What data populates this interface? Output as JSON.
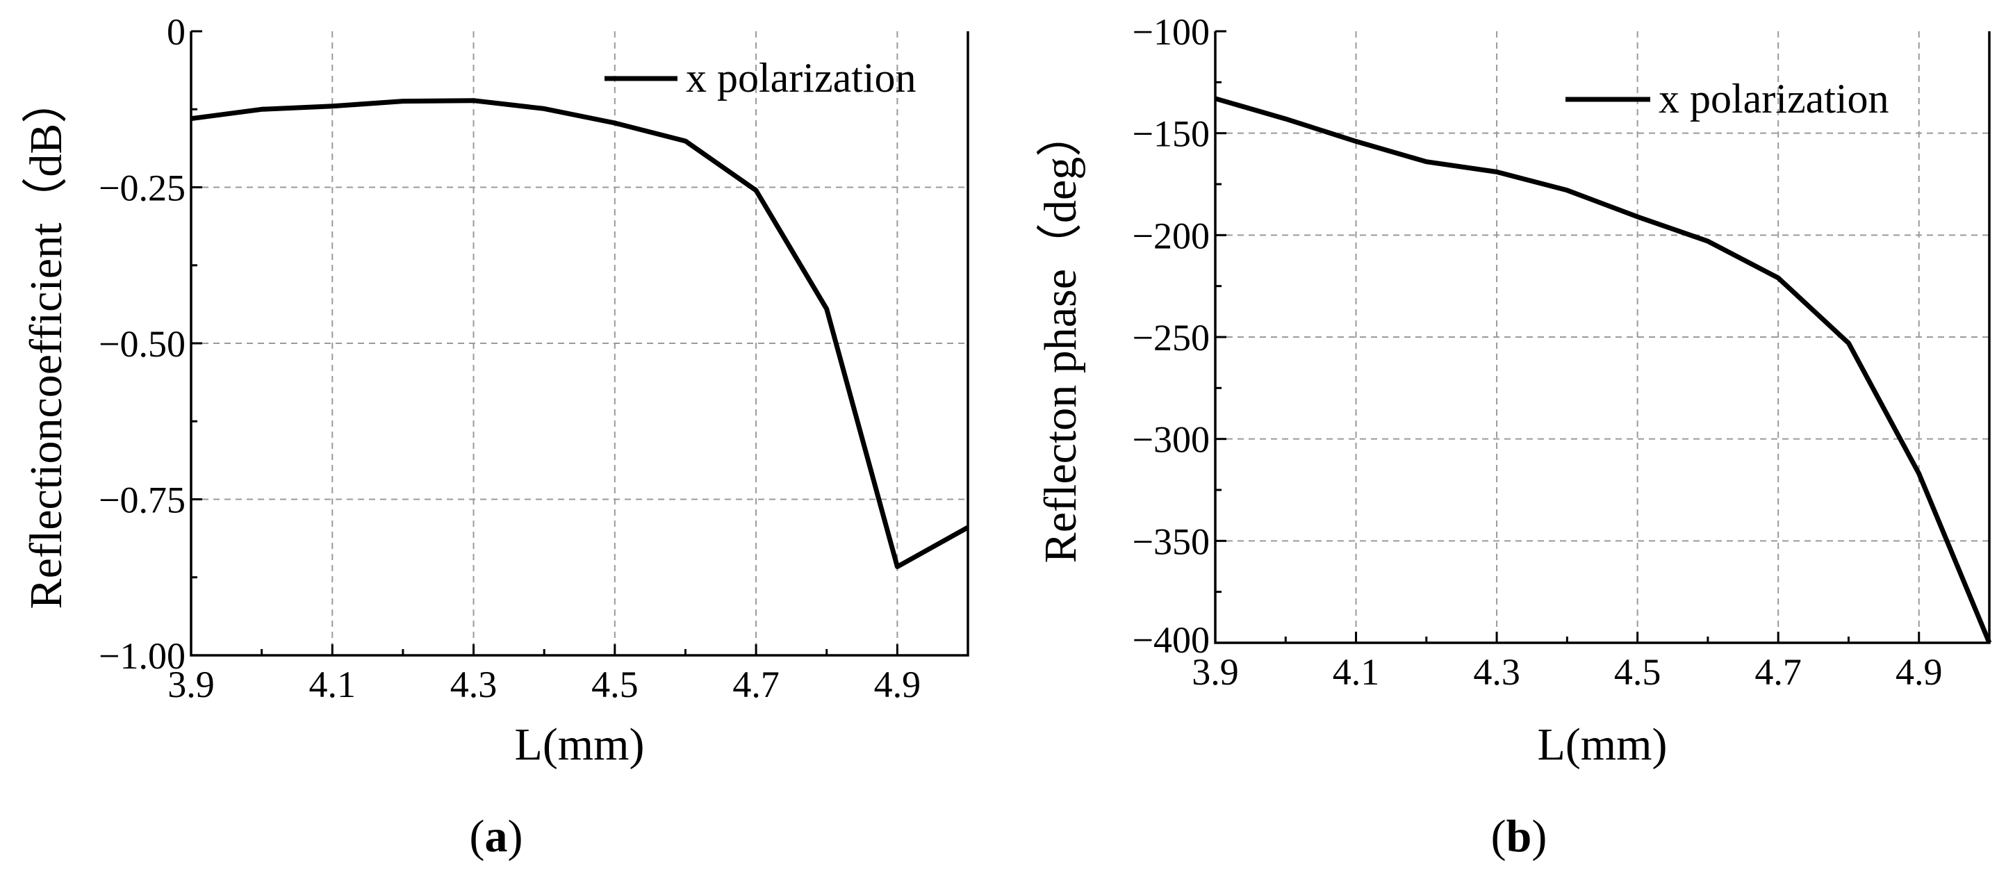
{
  "chart_data": [
    {
      "type": "line",
      "panel_label": "(a)",
      "xlabel": "L(mm)",
      "ylabel": "Reflectioncoefficient（dB）",
      "xlim": [
        3.9,
        5.0
      ],
      "ylim": [
        -1.0,
        0.0
      ],
      "xticks": [
        "3.9",
        "4.1",
        "4.3",
        "4.5",
        "4.7",
        "4.9"
      ],
      "xtick_values": [
        3.9,
        4.1,
        4.3,
        4.5,
        4.7,
        4.9
      ],
      "yticks": [
        "0",
        "−0.25",
        "−0.50",
        "−0.75",
        "−1.00"
      ],
      "ytick_values": [
        0,
        -0.25,
        -0.5,
        -0.75,
        -1.0
      ],
      "grid": true,
      "legend": "top-right",
      "series": [
        {
          "name": "x polarization",
          "x": [
            3.9,
            4.0,
            4.1,
            4.2,
            4.3,
            4.4,
            4.5,
            4.6,
            4.7,
            4.8,
            4.9,
            5.0
          ],
          "values": [
            -0.14,
            -0.125,
            -0.12,
            -0.112,
            -0.111,
            -0.124,
            -0.147,
            -0.176,
            -0.255,
            -0.445,
            -0.858,
            -0.795
          ]
        }
      ]
    },
    {
      "type": "line",
      "panel_label": "(b)",
      "xlabel": "L(mm)",
      "ylabel": "Reflecton phase（deg）",
      "xlim": [
        3.9,
        5.0
      ],
      "ylim": [
        -400,
        -100
      ],
      "xticks": [
        "3.9",
        "4.1",
        "4.3",
        "4.5",
        "4.7",
        "4.9"
      ],
      "xtick_values": [
        3.9,
        4.1,
        4.3,
        4.5,
        4.7,
        4.9
      ],
      "yticks": [
        "−100",
        "−150",
        "−200",
        "−250",
        "−300",
        "−350",
        "−400"
      ],
      "ytick_values": [
        -100,
        -150,
        -200,
        -250,
        -300,
        -350,
        -400
      ],
      "grid": true,
      "legend": "top-right",
      "series": [
        {
          "name": "x polarization",
          "x": [
            3.9,
            4.0,
            4.1,
            4.2,
            4.3,
            4.4,
            4.5,
            4.6,
            4.7,
            4.8,
            4.9,
            5.0
          ],
          "values": [
            -133,
            -143,
            -154,
            -164,
            -169,
            -178,
            -191,
            -203,
            -221,
            -253,
            -317,
            -401
          ]
        }
      ]
    }
  ]
}
